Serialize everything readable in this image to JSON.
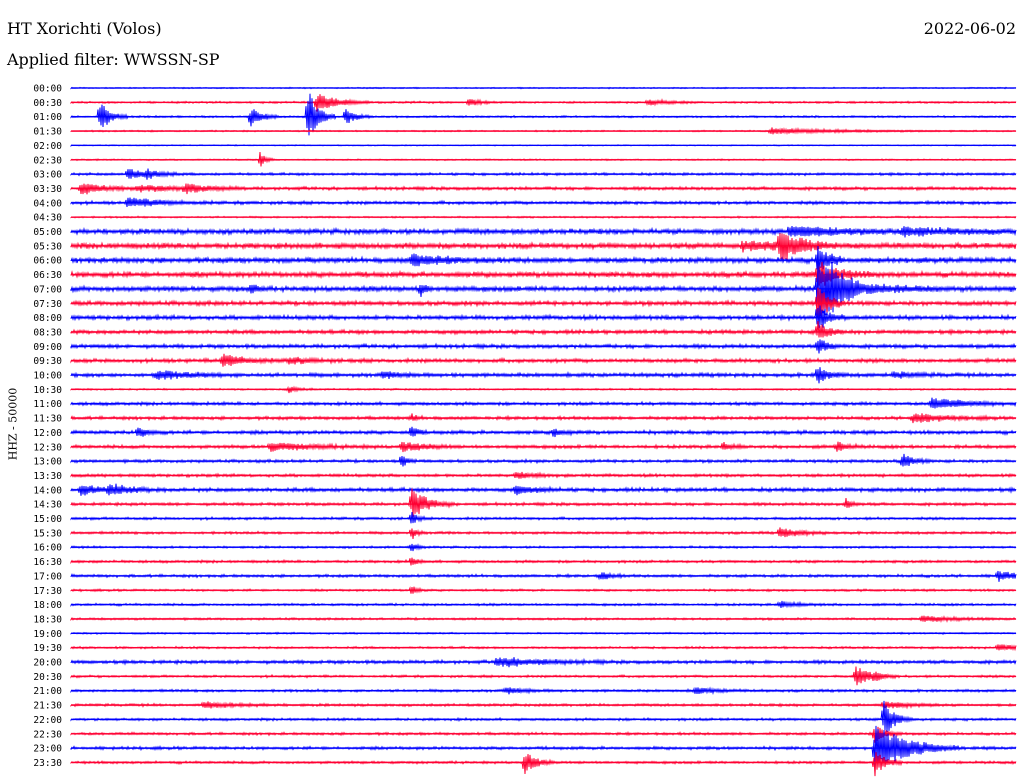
{
  "header": {
    "station": "HT Xorichti (Volos)",
    "date": "2022-06-02",
    "filter": "Applied filter: WWSSN-SP"
  },
  "channel_label": "HHZ - 50000",
  "colors": {
    "trace_a": "#0000ff",
    "trace_b": "#ff0033"
  },
  "rows": [
    {
      "time": "00:00",
      "color": "a",
      "noise": 0.6,
      "events": []
    },
    {
      "time": "00:30",
      "color": "b",
      "noise": 0.9,
      "events": [
        {
          "x": 0.26,
          "amp": 9,
          "dur": 0.02
        },
        {
          "x": 0.42,
          "amp": 4,
          "dur": 0.01
        },
        {
          "x": 0.61,
          "amp": 3,
          "dur": 0.02
        }
      ]
    },
    {
      "time": "01:00",
      "color": "a",
      "noise": 0.9,
      "events": [
        {
          "x": 0.03,
          "amp": 17,
          "dur": 0.01
        },
        {
          "x": 0.19,
          "amp": 11,
          "dur": 0.01
        },
        {
          "x": 0.25,
          "amp": 32,
          "dur": 0.01
        },
        {
          "x": 0.29,
          "amp": 9,
          "dur": 0.01
        }
      ]
    },
    {
      "time": "01:30",
      "color": "b",
      "noise": 0.7,
      "events": [
        {
          "x": 0.74,
          "amp": 3,
          "dur": 0.06
        }
      ]
    },
    {
      "time": "02:00",
      "color": "a",
      "noise": 0.5,
      "events": []
    },
    {
      "time": "02:30",
      "color": "b",
      "noise": 0.7,
      "events": [
        {
          "x": 0.2,
          "amp": 8,
          "dur": 0.005
        }
      ]
    },
    {
      "time": "03:00",
      "color": "a",
      "noise": 1.2,
      "events": [
        {
          "x": 0.06,
          "amp": 5,
          "dur": 0.02
        },
        {
          "x": 0.08,
          "amp": 4,
          "dur": 0.01
        }
      ]
    },
    {
      "time": "03:30",
      "color": "b",
      "noise": 1.5,
      "events": [
        {
          "x": 0.01,
          "amp": 6,
          "dur": 0.02
        },
        {
          "x": 0.07,
          "amp": 3,
          "dur": 0.04
        },
        {
          "x": 0.12,
          "amp": 4,
          "dur": 0.02
        }
      ]
    },
    {
      "time": "04:00",
      "color": "a",
      "noise": 1.5,
      "events": [
        {
          "x": 0.06,
          "amp": 5,
          "dur": 0.03
        }
      ]
    },
    {
      "time": "04:30",
      "color": "b",
      "noise": 0.8,
      "events": []
    },
    {
      "time": "05:00",
      "color": "a",
      "noise": 2.5,
      "events": [
        {
          "x": 0.76,
          "amp": 5,
          "dur": 0.06
        },
        {
          "x": 0.88,
          "amp": 3,
          "dur": 0.06
        }
      ]
    },
    {
      "time": "05:30",
      "color": "b",
      "noise": 2.6,
      "events": [
        {
          "x": 0.75,
          "amp": 14,
          "dur": 0.02
        },
        {
          "x": 0.71,
          "amp": 4,
          "dur": 0.05
        }
      ]
    },
    {
      "time": "06:00",
      "color": "a",
      "noise": 2.5,
      "events": [
        {
          "x": 0.36,
          "amp": 6,
          "dur": 0.03
        },
        {
          "x": 0.79,
          "amp": 18,
          "dur": 0.01
        }
      ]
    },
    {
      "time": "06:30",
      "color": "b",
      "noise": 2.5,
      "events": [
        {
          "x": 0.79,
          "amp": 14,
          "dur": 0.02
        }
      ]
    },
    {
      "time": "07:00",
      "color": "a",
      "noise": 2.5,
      "events": [
        {
          "x": 0.79,
          "amp": 40,
          "dur": 0.015
        },
        {
          "x": 0.8,
          "amp": 12,
          "dur": 0.04
        },
        {
          "x": 0.19,
          "amp": 6,
          "dur": 0.005
        },
        {
          "x": 0.37,
          "amp": 7,
          "dur": 0.005
        }
      ]
    },
    {
      "time": "07:30",
      "color": "b",
      "noise": 2.0,
      "events": [
        {
          "x": 0.79,
          "amp": 20,
          "dur": 0.01
        }
      ]
    },
    {
      "time": "08:00",
      "color": "a",
      "noise": 2.0,
      "events": [
        {
          "x": 0.79,
          "amp": 14,
          "dur": 0.01
        }
      ]
    },
    {
      "time": "08:30",
      "color": "b",
      "noise": 1.8,
      "events": [
        {
          "x": 0.79,
          "amp": 10,
          "dur": 0.01
        }
      ]
    },
    {
      "time": "09:00",
      "color": "a",
      "noise": 1.8,
      "events": [
        {
          "x": 0.79,
          "amp": 8,
          "dur": 0.01
        }
      ]
    },
    {
      "time": "09:30",
      "color": "b",
      "noise": 1.8,
      "events": [
        {
          "x": 0.16,
          "amp": 7,
          "dur": 0.02
        },
        {
          "x": 0.23,
          "amp": 3,
          "dur": 0.02
        }
      ]
    },
    {
      "time": "10:00",
      "color": "a",
      "noise": 1.8,
      "events": [
        {
          "x": 0.09,
          "amp": 5,
          "dur": 0.03
        },
        {
          "x": 0.33,
          "amp": 3,
          "dur": 0.02
        },
        {
          "x": 0.79,
          "amp": 9,
          "dur": 0.01
        },
        {
          "x": 0.87,
          "amp": 3,
          "dur": 0.02
        }
      ]
    },
    {
      "time": "10:30",
      "color": "b",
      "noise": 0.8,
      "events": [
        {
          "x": 0.23,
          "amp": 3,
          "dur": 0.01
        }
      ]
    },
    {
      "time": "11:00",
      "color": "a",
      "noise": 1.5,
      "events": [
        {
          "x": 0.91,
          "amp": 6,
          "dur": 0.03
        }
      ]
    },
    {
      "time": "11:30",
      "color": "b",
      "noise": 1.5,
      "events": [
        {
          "x": 0.89,
          "amp": 5,
          "dur": 0.03
        },
        {
          "x": 0.36,
          "amp": 4,
          "dur": 0.005
        }
      ]
    },
    {
      "time": "12:00",
      "color": "a",
      "noise": 1.7,
      "events": [
        {
          "x": 0.07,
          "amp": 5,
          "dur": 0.01
        },
        {
          "x": 0.36,
          "amp": 9,
          "dur": 0.005
        },
        {
          "x": 0.51,
          "amp": 4,
          "dur": 0.01
        }
      ]
    },
    {
      "time": "12:30",
      "color": "b",
      "noise": 1.6,
      "events": [
        {
          "x": 0.21,
          "amp": 4,
          "dur": 0.04
        },
        {
          "x": 0.35,
          "amp": 5,
          "dur": 0.02
        },
        {
          "x": 0.69,
          "amp": 4,
          "dur": 0.01
        },
        {
          "x": 0.81,
          "amp": 5,
          "dur": 0.01
        }
      ]
    },
    {
      "time": "13:00",
      "color": "a",
      "noise": 1.4,
      "events": [
        {
          "x": 0.35,
          "amp": 6,
          "dur": 0.005
        },
        {
          "x": 0.88,
          "amp": 8,
          "dur": 0.01
        }
      ]
    },
    {
      "time": "13:30",
      "color": "b",
      "noise": 1.4,
      "events": [
        {
          "x": 0.47,
          "amp": 3,
          "dur": 0.02
        }
      ]
    },
    {
      "time": "14:00",
      "color": "a",
      "noise": 1.8,
      "events": [
        {
          "x": 0.01,
          "amp": 5,
          "dur": 0.02
        },
        {
          "x": 0.04,
          "amp": 5,
          "dur": 0.02
        },
        {
          "x": 0.47,
          "amp": 4,
          "dur": 0.02
        }
      ]
    },
    {
      "time": "14:30",
      "color": "b",
      "noise": 1.4,
      "events": [
        {
          "x": 0.36,
          "amp": 16,
          "dur": 0.015
        },
        {
          "x": 0.82,
          "amp": 6,
          "dur": 0.005
        }
      ]
    },
    {
      "time": "15:00",
      "color": "a",
      "noise": 1.2,
      "events": [
        {
          "x": 0.36,
          "amp": 8,
          "dur": 0.005
        }
      ]
    },
    {
      "time": "15:30",
      "color": "b",
      "noise": 1.2,
      "events": [
        {
          "x": 0.75,
          "amp": 5,
          "dur": 0.02
        },
        {
          "x": 0.36,
          "amp": 7,
          "dur": 0.005
        }
      ]
    },
    {
      "time": "16:00",
      "color": "a",
      "noise": 1.0,
      "events": [
        {
          "x": 0.36,
          "amp": 6,
          "dur": 0.005
        }
      ]
    },
    {
      "time": "16:30",
      "color": "b",
      "noise": 1.2,
      "events": [
        {
          "x": 0.36,
          "amp": 6,
          "dur": 0.005
        }
      ]
    },
    {
      "time": "17:00",
      "color": "a",
      "noise": 1.3,
      "events": [
        {
          "x": 0.56,
          "amp": 4,
          "dur": 0.01
        },
        {
          "x": 0.98,
          "amp": 5,
          "dur": 0.02
        }
      ]
    },
    {
      "time": "17:30",
      "color": "b",
      "noise": 1.0,
      "events": [
        {
          "x": 0.36,
          "amp": 6,
          "dur": 0.005
        }
      ]
    },
    {
      "time": "18:00",
      "color": "a",
      "noise": 1.1,
      "events": [
        {
          "x": 0.75,
          "amp": 3,
          "dur": 0.02
        }
      ]
    },
    {
      "time": "18:30",
      "color": "b",
      "noise": 1.0,
      "events": [
        {
          "x": 0.9,
          "amp": 3,
          "dur": 0.03
        }
      ]
    },
    {
      "time": "19:00",
      "color": "a",
      "noise": 0.8,
      "events": []
    },
    {
      "time": "19:30",
      "color": "b",
      "noise": 1.0,
      "events": [
        {
          "x": 0.98,
          "amp": 3,
          "dur": 0.03
        }
      ]
    },
    {
      "time": "20:00",
      "color": "a",
      "noise": 1.6,
      "events": [
        {
          "x": 0.45,
          "amp": 5,
          "dur": 0.04
        }
      ]
    },
    {
      "time": "20:30",
      "color": "b",
      "noise": 1.1,
      "events": [
        {
          "x": 0.83,
          "amp": 10,
          "dur": 0.015
        },
        {
          "x": 0.85,
          "amp": 4,
          "dur": 0.005
        }
      ]
    },
    {
      "time": "21:00",
      "color": "a",
      "noise": 1.2,
      "events": [
        {
          "x": 0.46,
          "amp": 3,
          "dur": 0.02
        },
        {
          "x": 0.66,
          "amp": 3,
          "dur": 0.02
        }
      ]
    },
    {
      "time": "21:30",
      "color": "b",
      "noise": 1.2,
      "events": [
        {
          "x": 0.14,
          "amp": 3,
          "dur": 0.03
        },
        {
          "x": 0.86,
          "amp": 4,
          "dur": 0.02
        }
      ]
    },
    {
      "time": "22:00",
      "color": "a",
      "noise": 1.2,
      "events": [
        {
          "x": 0.86,
          "amp": 20,
          "dur": 0.01
        }
      ]
    },
    {
      "time": "22:30",
      "color": "b",
      "noise": 1.2,
      "events": [
        {
          "x": 0.85,
          "amp": 9,
          "dur": 0.01
        }
      ]
    },
    {
      "time": "23:00",
      "color": "a",
      "noise": 1.4,
      "events": [
        {
          "x": 0.85,
          "amp": 26,
          "dur": 0.03
        }
      ]
    },
    {
      "time": "23:30",
      "color": "b",
      "noise": 1.2,
      "events": [
        {
          "x": 0.48,
          "amp": 12,
          "dur": 0.01
        },
        {
          "x": 0.85,
          "amp": 14,
          "dur": 0.01
        }
      ]
    }
  ]
}
